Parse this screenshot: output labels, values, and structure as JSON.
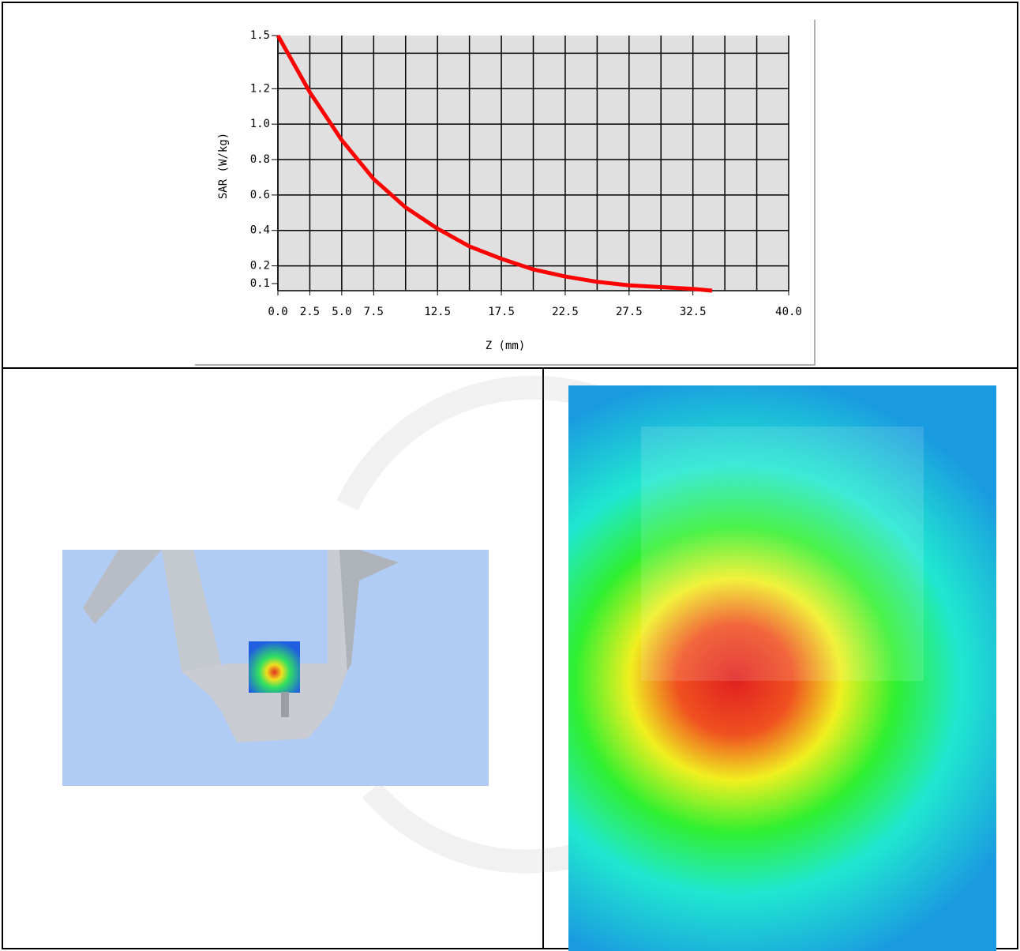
{
  "chart_data": {
    "type": "line",
    "xlabel": "Z (mm)",
    "ylabel": "SAR (W/kg)",
    "x": [
      0,
      2.5,
      5,
      7.5,
      10,
      12.5,
      15,
      17.5,
      20,
      22.5,
      25,
      27.5,
      30,
      32.5,
      34
    ],
    "values": [
      1.5,
      1.18,
      0.91,
      0.69,
      0.53,
      0.41,
      0.31,
      0.24,
      0.18,
      0.14,
      0.11,
      0.09,
      0.08,
      0.07,
      0.06
    ],
    "color": "#ff0000",
    "xlim": [
      0,
      40
    ],
    "xticks": [
      {
        "value": 0,
        "label": "0.0"
      },
      2.5,
      {
        "value": 5,
        "label": "5.0"
      },
      7.5,
      12.5,
      17.5,
      22.5,
      27.5,
      32.5,
      {
        "value": 40,
        "label": "40.0"
      }
    ],
    "ylim": [
      0.06,
      1.5
    ],
    "yticks": [
      0.1,
      0.2,
      0.4,
      0.6,
      0.8,
      {
        "value": 1,
        "label": "1.0"
      },
      1.2,
      1.5
    ],
    "grid": true,
    "grid_step": {
      "x": 2.5,
      "y": 0.2
    }
  }
}
